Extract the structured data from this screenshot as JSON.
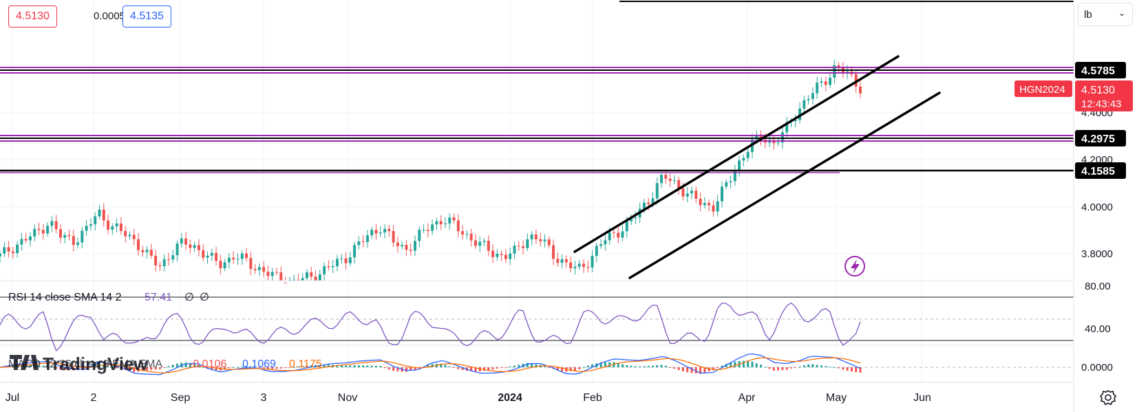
{
  "header": {
    "bid": "4.5130",
    "spread": "0.0005",
    "ask": "4.5135"
  },
  "unit_selector": {
    "label": "lb"
  },
  "price_axis": {
    "ticks": [
      "4.4000",
      "4.2000",
      "4.0000",
      "3.8000"
    ],
    "level_labels": [
      "4.5785",
      "4.2975",
      "4.1585"
    ],
    "symbol_tag": "HGN2024",
    "last_price": "4.5130",
    "countdown": "12:43:43"
  },
  "time_axis": {
    "ticks": [
      "Jul",
      "2",
      "Sep",
      "3",
      "Nov",
      "2024",
      "Feb",
      "Apr",
      "May",
      "Jun"
    ]
  },
  "rsi": {
    "title": "RSI 14 close SMA 14 2",
    "value": "57.41",
    "extra1": "∅",
    "extra2": "∅",
    "axis": [
      "80.00",
      "40.00"
    ]
  },
  "macd": {
    "title": "MACD 12 26 close 9 EMA EMA",
    "hist": "-0.0106",
    "macd": "0.1069",
    "signal": "0.1175",
    "axis": [
      "0.0000"
    ]
  },
  "watermark": "TradingView",
  "colors": {
    "up": "#26a69a",
    "down": "#ef5350",
    "rsi": "#7e57c2",
    "macd": "#2962ff",
    "signal": "#ff6d00",
    "level": "#9c27b0",
    "last": "#f23645"
  },
  "chart_data": {
    "type": "candlestick",
    "x_range": [
      "2023-07",
      "2024-06"
    ],
    "y_range": [
      3.72,
      4.68
    ],
    "horizontal_levels": [
      4.5785,
      4.2975,
      4.1585
    ],
    "last_price": 4.513,
    "rsi_last": 57.41,
    "macd_last": {
      "histogram": -0.0106,
      "macd": 0.1069,
      "signal": 0.1175
    },
    "close_path": [
      [
        0,
        3.79
      ],
      [
        10,
        3.83
      ],
      [
        20,
        3.86
      ],
      [
        30,
        3.89
      ],
      [
        40,
        3.94
      ],
      [
        50,
        3.87
      ],
      [
        60,
        3.86
      ],
      [
        70,
        3.9
      ],
      [
        80,
        3.98
      ],
      [
        90,
        3.92
      ],
      [
        100,
        3.89
      ],
      [
        110,
        3.86
      ],
      [
        120,
        3.79
      ],
      [
        130,
        3.75
      ],
      [
        140,
        3.81
      ],
      [
        150,
        3.85
      ],
      [
        160,
        3.83
      ],
      [
        170,
        3.78
      ],
      [
        180,
        3.76
      ],
      [
        190,
        3.79
      ],
      [
        200,
        3.77
      ],
      [
        210,
        3.74
      ],
      [
        220,
        3.71
      ],
      [
        230,
        3.69
      ],
      [
        240,
        3.68
      ],
      [
        250,
        3.7
      ],
      [
        260,
        3.72
      ],
      [
        270,
        3.75
      ],
      [
        280,
        3.78
      ],
      [
        290,
        3.83
      ],
      [
        300,
        3.88
      ],
      [
        310,
        3.92
      ],
      [
        320,
        3.85
      ],
      [
        330,
        3.82
      ],
      [
        340,
        3.87
      ],
      [
        350,
        3.92
      ],
      [
        360,
        3.95
      ],
      [
        370,
        3.92
      ],
      [
        380,
        3.88
      ],
      [
        390,
        3.84
      ],
      [
        400,
        3.81
      ],
      [
        410,
        3.79
      ],
      [
        420,
        3.81
      ],
      [
        430,
        3.88
      ],
      [
        440,
        3.86
      ],
      [
        450,
        3.8
      ],
      [
        460,
        3.76
      ],
      [
        470,
        3.73
      ],
      [
        480,
        3.78
      ],
      [
        490,
        3.85
      ],
      [
        500,
        3.89
      ],
      [
        510,
        3.92
      ],
      [
        520,
        3.98
      ],
      [
        530,
        4.05
      ],
      [
        540,
        4.13
      ],
      [
        550,
        4.1
      ],
      [
        560,
        4.05
      ],
      [
        570,
        4.02
      ],
      [
        580,
        4.0
      ],
      [
        590,
        4.08
      ],
      [
        600,
        4.18
      ],
      [
        610,
        4.26
      ],
      [
        620,
        4.3
      ],
      [
        630,
        4.27
      ],
      [
        640,
        4.33
      ],
      [
        650,
        4.42
      ],
      [
        660,
        4.48
      ],
      [
        670,
        4.53
      ],
      [
        680,
        4.6
      ],
      [
        690,
        4.56
      ],
      [
        700,
        4.51
      ]
    ]
  }
}
